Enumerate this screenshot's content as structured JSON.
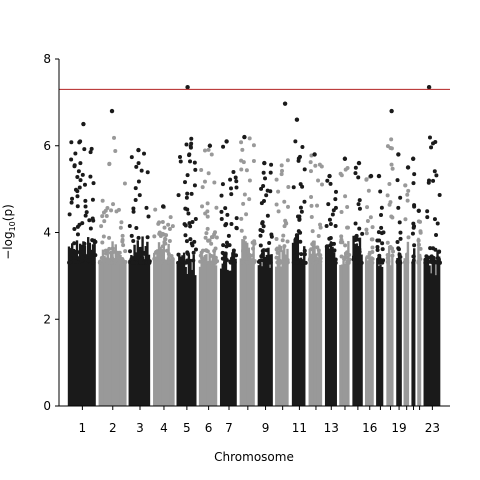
{
  "chart_data": {
    "type": "scatter",
    "subtype": "manhattan",
    "title": "",
    "xlabel": "Chromosome",
    "ylabel_main": "−log",
    "ylabel_sub": "10",
    "ylabel_arg": "(p)",
    "ylim": [
      0,
      8
    ],
    "y_ticks": [
      0,
      2,
      4,
      6,
      8
    ],
    "significance_line": 7.3,
    "significance_color": "#b22222",
    "colors": {
      "dark": "#1a1a1a",
      "light": "#999999"
    },
    "chromosomes": [
      {
        "chr": "1",
        "length": 249,
        "max": 6.5,
        "label": "1"
      },
      {
        "chr": "2",
        "length": 243,
        "max": 6.8,
        "label": "2"
      },
      {
        "chr": "3",
        "length": 198,
        "max": 5.9,
        "label": "3"
      },
      {
        "chr": "4",
        "length": 190,
        "max": 4.6,
        "label": "4"
      },
      {
        "chr": "5",
        "length": 181,
        "max": 7.35,
        "label": "5"
      },
      {
        "chr": "6",
        "length": 171,
        "max": 6.0,
        "label": "6"
      },
      {
        "chr": "7",
        "length": 159,
        "max": 6.1,
        "label": "7"
      },
      {
        "chr": "8",
        "length": 146,
        "max": 6.2,
        "label": ""
      },
      {
        "chr": "9",
        "length": 141,
        "max": 5.6,
        "label": "9"
      },
      {
        "chr": "10",
        "length": 136,
        "max": 6.97,
        "label": ""
      },
      {
        "chr": "11",
        "length": 135,
        "max": 6.6,
        "label": "11"
      },
      {
        "chr": "12",
        "length": 133,
        "max": 5.8,
        "label": ""
      },
      {
        "chr": "13",
        "length": 115,
        "max": 5.3,
        "label": "13"
      },
      {
        "chr": "14",
        "length": 107,
        "max": 5.7,
        "label": ""
      },
      {
        "chr": "15",
        "length": 102,
        "max": 5.6,
        "label": ""
      },
      {
        "chr": "16",
        "length": 90,
        "max": 5.3,
        "label": "16"
      },
      {
        "chr": "17",
        "length": 83,
        "max": 5.3,
        "label": ""
      },
      {
        "chr": "18",
        "length": 80,
        "max": 6.8,
        "label": ""
      },
      {
        "chr": "19",
        "length": 59,
        "max": 5.8,
        "label": "19"
      },
      {
        "chr": "20",
        "length": 64,
        "max": 5.5,
        "label": ""
      },
      {
        "chr": "21",
        "length": 47,
        "max": 5.7,
        "label": ""
      },
      {
        "chr": "22",
        "length": 51,
        "max": 4.5,
        "label": ""
      },
      {
        "chr": "23",
        "length": 156,
        "max": 7.35,
        "label": "23"
      }
    ]
  }
}
